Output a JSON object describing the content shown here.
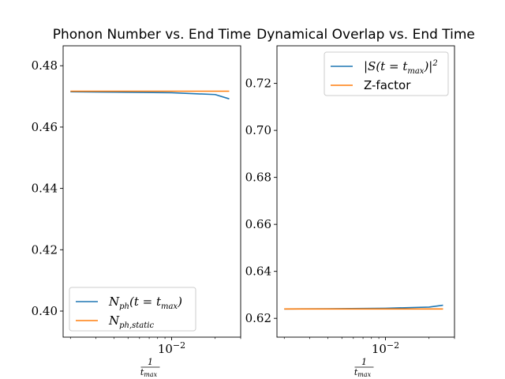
{
  "colors": {
    "series1": "#1f77b4",
    "series2": "#ff7f0e"
  },
  "chart_data": [
    {
      "type": "line",
      "title": "Phonon Number vs. End Time",
      "x_scale": "log",
      "xlim": [
        0.00178,
        0.03
      ],
      "ylim": [
        0.3915,
        0.4865
      ],
      "xlabel_num": "1",
      "xlabel_den": "t",
      "xlabel_den_sub": "max",
      "x_tick_labels": [
        {
          "value": 0.01,
          "base": "10",
          "exp": "−2"
        }
      ],
      "y_ticks": [
        0.4,
        0.42,
        0.44,
        0.46,
        0.48
      ],
      "y_tick_labels": [
        "0.40",
        "0.42",
        "0.44",
        "0.46",
        "0.48"
      ],
      "legend_position": "lower-left",
      "series": [
        {
          "name": "N",
          "name_sub": "ph",
          "name_tail": "(t = t",
          "name_tail_sub": "max",
          "name_end": ")",
          "color": "#1f77b4",
          "x": [
            0.002,
            0.004,
            0.01,
            0.02,
            0.025
          ],
          "y": [
            0.4715,
            0.4714,
            0.4712,
            0.4706,
            0.4692
          ]
        },
        {
          "name": "N",
          "name_sub": "ph,static",
          "name_tail": "",
          "name_tail_sub": "",
          "name_end": "",
          "color": "#ff7f0e",
          "x": [
            0.002,
            0.004,
            0.01,
            0.02,
            0.025
          ],
          "y": [
            0.4717,
            0.4717,
            0.4717,
            0.4717,
            0.4717
          ]
        }
      ]
    },
    {
      "type": "line",
      "title": "Dynamical Overlap vs. End Time",
      "x_scale": "log",
      "xlim": [
        0.00178,
        0.03
      ],
      "ylim": [
        0.612,
        0.736
      ],
      "xlabel_num": "1",
      "xlabel_den": "t",
      "xlabel_den_sub": "max",
      "x_tick_labels": [
        {
          "value": 0.01,
          "base": "10",
          "exp": "−2"
        }
      ],
      "y_ticks": [
        0.62,
        0.64,
        0.66,
        0.68,
        0.7,
        0.72
      ],
      "y_tick_labels": [
        "0.62",
        "0.64",
        "0.66",
        "0.68",
        "0.70",
        "0.72"
      ],
      "legend_position": "upper-right",
      "series": [
        {
          "name": "|S(t = t",
          "name_sub": "max",
          "name_tail": ")|",
          "name_tail_sup": "2",
          "color": "#1f77b4",
          "x": [
            0.002,
            0.004,
            0.01,
            0.02,
            0.025
          ],
          "y": [
            0.624,
            0.6241,
            0.6243,
            0.6248,
            0.6256
          ]
        },
        {
          "name": "Z-factor",
          "plain": true,
          "color": "#ff7f0e",
          "x": [
            0.002,
            0.004,
            0.01,
            0.02,
            0.025
          ],
          "y": [
            0.624,
            0.624,
            0.624,
            0.624,
            0.624
          ]
        }
      ]
    }
  ]
}
